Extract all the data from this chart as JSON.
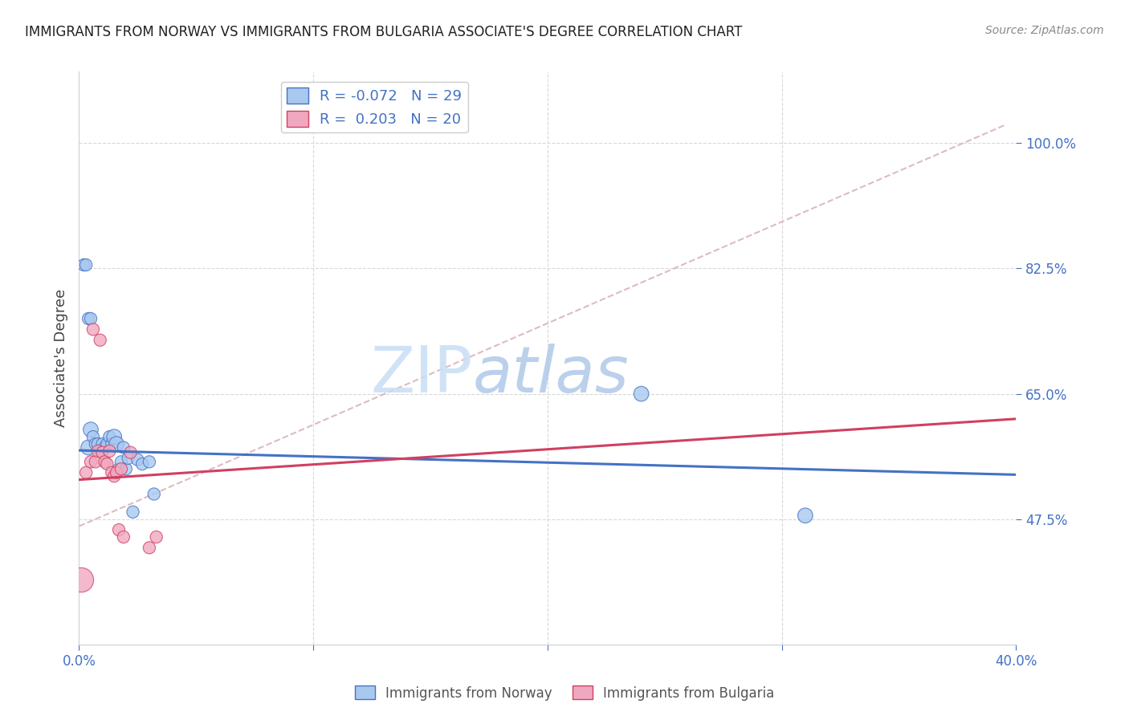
{
  "title": "IMMIGRANTS FROM NORWAY VS IMMIGRANTS FROM BULGARIA ASSOCIATE'S DEGREE CORRELATION CHART",
  "source": "Source: ZipAtlas.com",
  "ylabel": "Associate's Degree",
  "xlim": [
    0.0,
    0.4
  ],
  "ylim": [
    0.3,
    1.1
  ],
  "R_norway": -0.072,
  "N_norway": 29,
  "R_bulgaria": 0.203,
  "N_bulgaria": 20,
  "color_norway": "#a8c8f0",
  "color_bulgaria": "#f0a8c0",
  "trendline_color_norway": "#4472c4",
  "trendline_color_bulgaria": "#d04060",
  "diagonal_color": "#d8b0b8",
  "norway_x": [
    0.004,
    0.005,
    0.006,
    0.007,
    0.008,
    0.009,
    0.01,
    0.011,
    0.012,
    0.013,
    0.014,
    0.015,
    0.016,
    0.017,
    0.018,
    0.019,
    0.02,
    0.021,
    0.023,
    0.025,
    0.027,
    0.03,
    0.032,
    0.002,
    0.003,
    0.004,
    0.005,
    0.24,
    0.31
  ],
  "norway_y": [
    0.575,
    0.6,
    0.59,
    0.58,
    0.58,
    0.57,
    0.58,
    0.575,
    0.58,
    0.59,
    0.58,
    0.59,
    0.58,
    0.545,
    0.555,
    0.575,
    0.545,
    0.56,
    0.485,
    0.558,
    0.552,
    0.555,
    0.51,
    0.83,
    0.83,
    0.755,
    0.755,
    0.65,
    0.48
  ],
  "norway_sizes": [
    180,
    180,
    120,
    120,
    120,
    120,
    120,
    120,
    120,
    120,
    120,
    180,
    180,
    120,
    120,
    120,
    120,
    120,
    120,
    120,
    120,
    120,
    120,
    120,
    120,
    120,
    120,
    180,
    180
  ],
  "bulgaria_x": [
    0.001,
    0.003,
    0.005,
    0.007,
    0.008,
    0.01,
    0.011,
    0.012,
    0.013,
    0.014,
    0.015,
    0.016,
    0.017,
    0.018,
    0.019,
    0.022,
    0.03,
    0.033,
    0.006,
    0.009
  ],
  "bulgaria_y": [
    0.39,
    0.54,
    0.555,
    0.555,
    0.57,
    0.568,
    0.555,
    0.552,
    0.57,
    0.54,
    0.535,
    0.54,
    0.46,
    0.545,
    0.45,
    0.568,
    0.435,
    0.45,
    0.74,
    0.725
  ],
  "bulgaria_sizes": [
    480,
    120,
    120,
    120,
    120,
    120,
    120,
    120,
    120,
    120,
    120,
    120,
    120,
    120,
    120,
    120,
    120,
    120,
    120,
    120
  ],
  "ytick_pos": [
    0.475,
    0.65,
    0.825,
    1.0
  ],
  "ytick_labels": [
    "47.5%",
    "65.0%",
    "82.5%",
    "100.0%"
  ],
  "xtick_pos": [
    0.0,
    0.1,
    0.2,
    0.3,
    0.4
  ],
  "xtick_labels": [
    "0.0%",
    "",
    "",
    "",
    "40.0%"
  ]
}
